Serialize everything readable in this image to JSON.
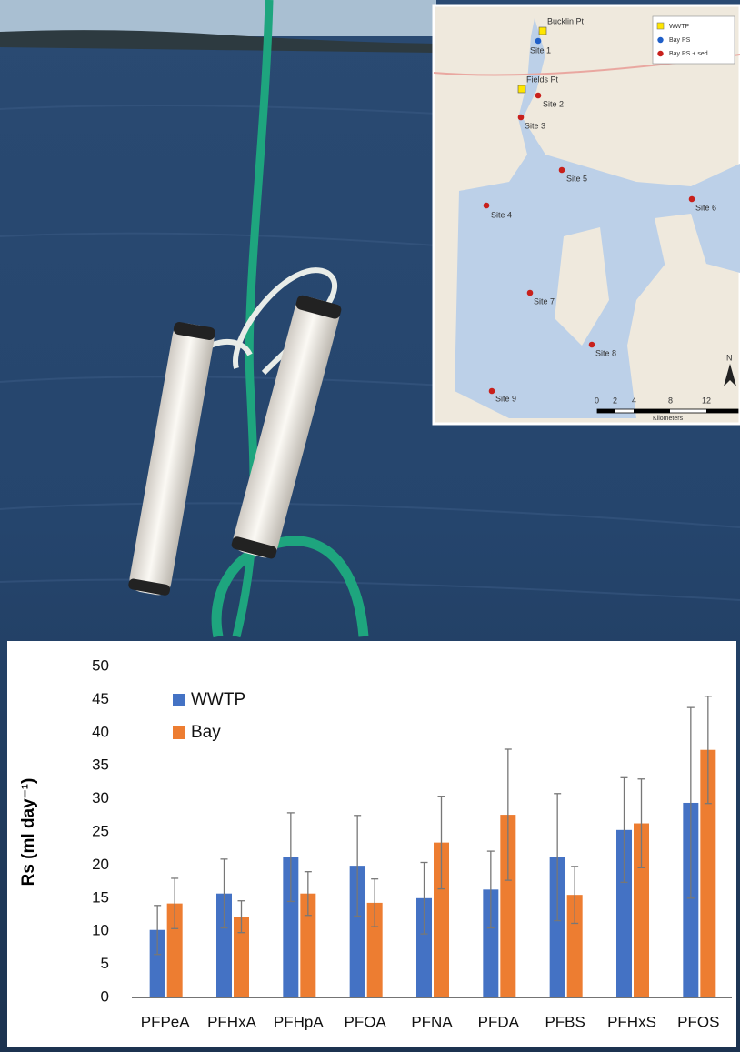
{
  "chart_data": {
    "type": "bar",
    "ylabel": "Rs (ml day⁻¹)",
    "categories": [
      "PFPeA",
      "PFHxA",
      "PFHpA",
      "PFOA",
      "PFNA",
      "PFDA",
      "PFBS",
      "PFHxS",
      "PFOS"
    ],
    "series": [
      {
        "name": "WWTP",
        "color": "#4472c4",
        "values": [
          10.2,
          15.7,
          21.2,
          19.9,
          15.0,
          16.3,
          21.2,
          25.3,
          29.4
        ],
        "errors": [
          3.7,
          5.2,
          6.7,
          7.6,
          5.4,
          5.8,
          9.6,
          7.9,
          14.4
        ]
      },
      {
        "name": "Bay",
        "color": "#ed7d31",
        "values": [
          14.2,
          12.2,
          15.7,
          14.3,
          23.4,
          27.6,
          15.5,
          26.3,
          37.4
        ],
        "errors": [
          3.8,
          2.4,
          3.3,
          3.6,
          7.0,
          9.9,
          4.3,
          6.7,
          8.1
        ]
      }
    ],
    "ylim": [
      0,
      50
    ],
    "yticks": [
      0,
      5,
      10,
      15,
      20,
      25,
      30,
      35,
      40,
      45,
      50
    ],
    "grid": false,
    "legend": "upper left"
  },
  "map": {
    "legend": [
      "WWTP",
      "Bay PS",
      "Bay PS + sed"
    ],
    "places": [
      "Bucklin Pt",
      "Fields Pt"
    ],
    "sites": [
      "Site 1",
      "Site 2",
      "Site 3",
      "Site 4",
      "Site 5",
      "Site 6",
      "Site 7",
      "Site 8",
      "Site 9"
    ],
    "scale_ticks": [
      "0",
      "2",
      "4",
      "8",
      "12"
    ],
    "scale_unit": "Kilometers",
    "north": "N"
  }
}
